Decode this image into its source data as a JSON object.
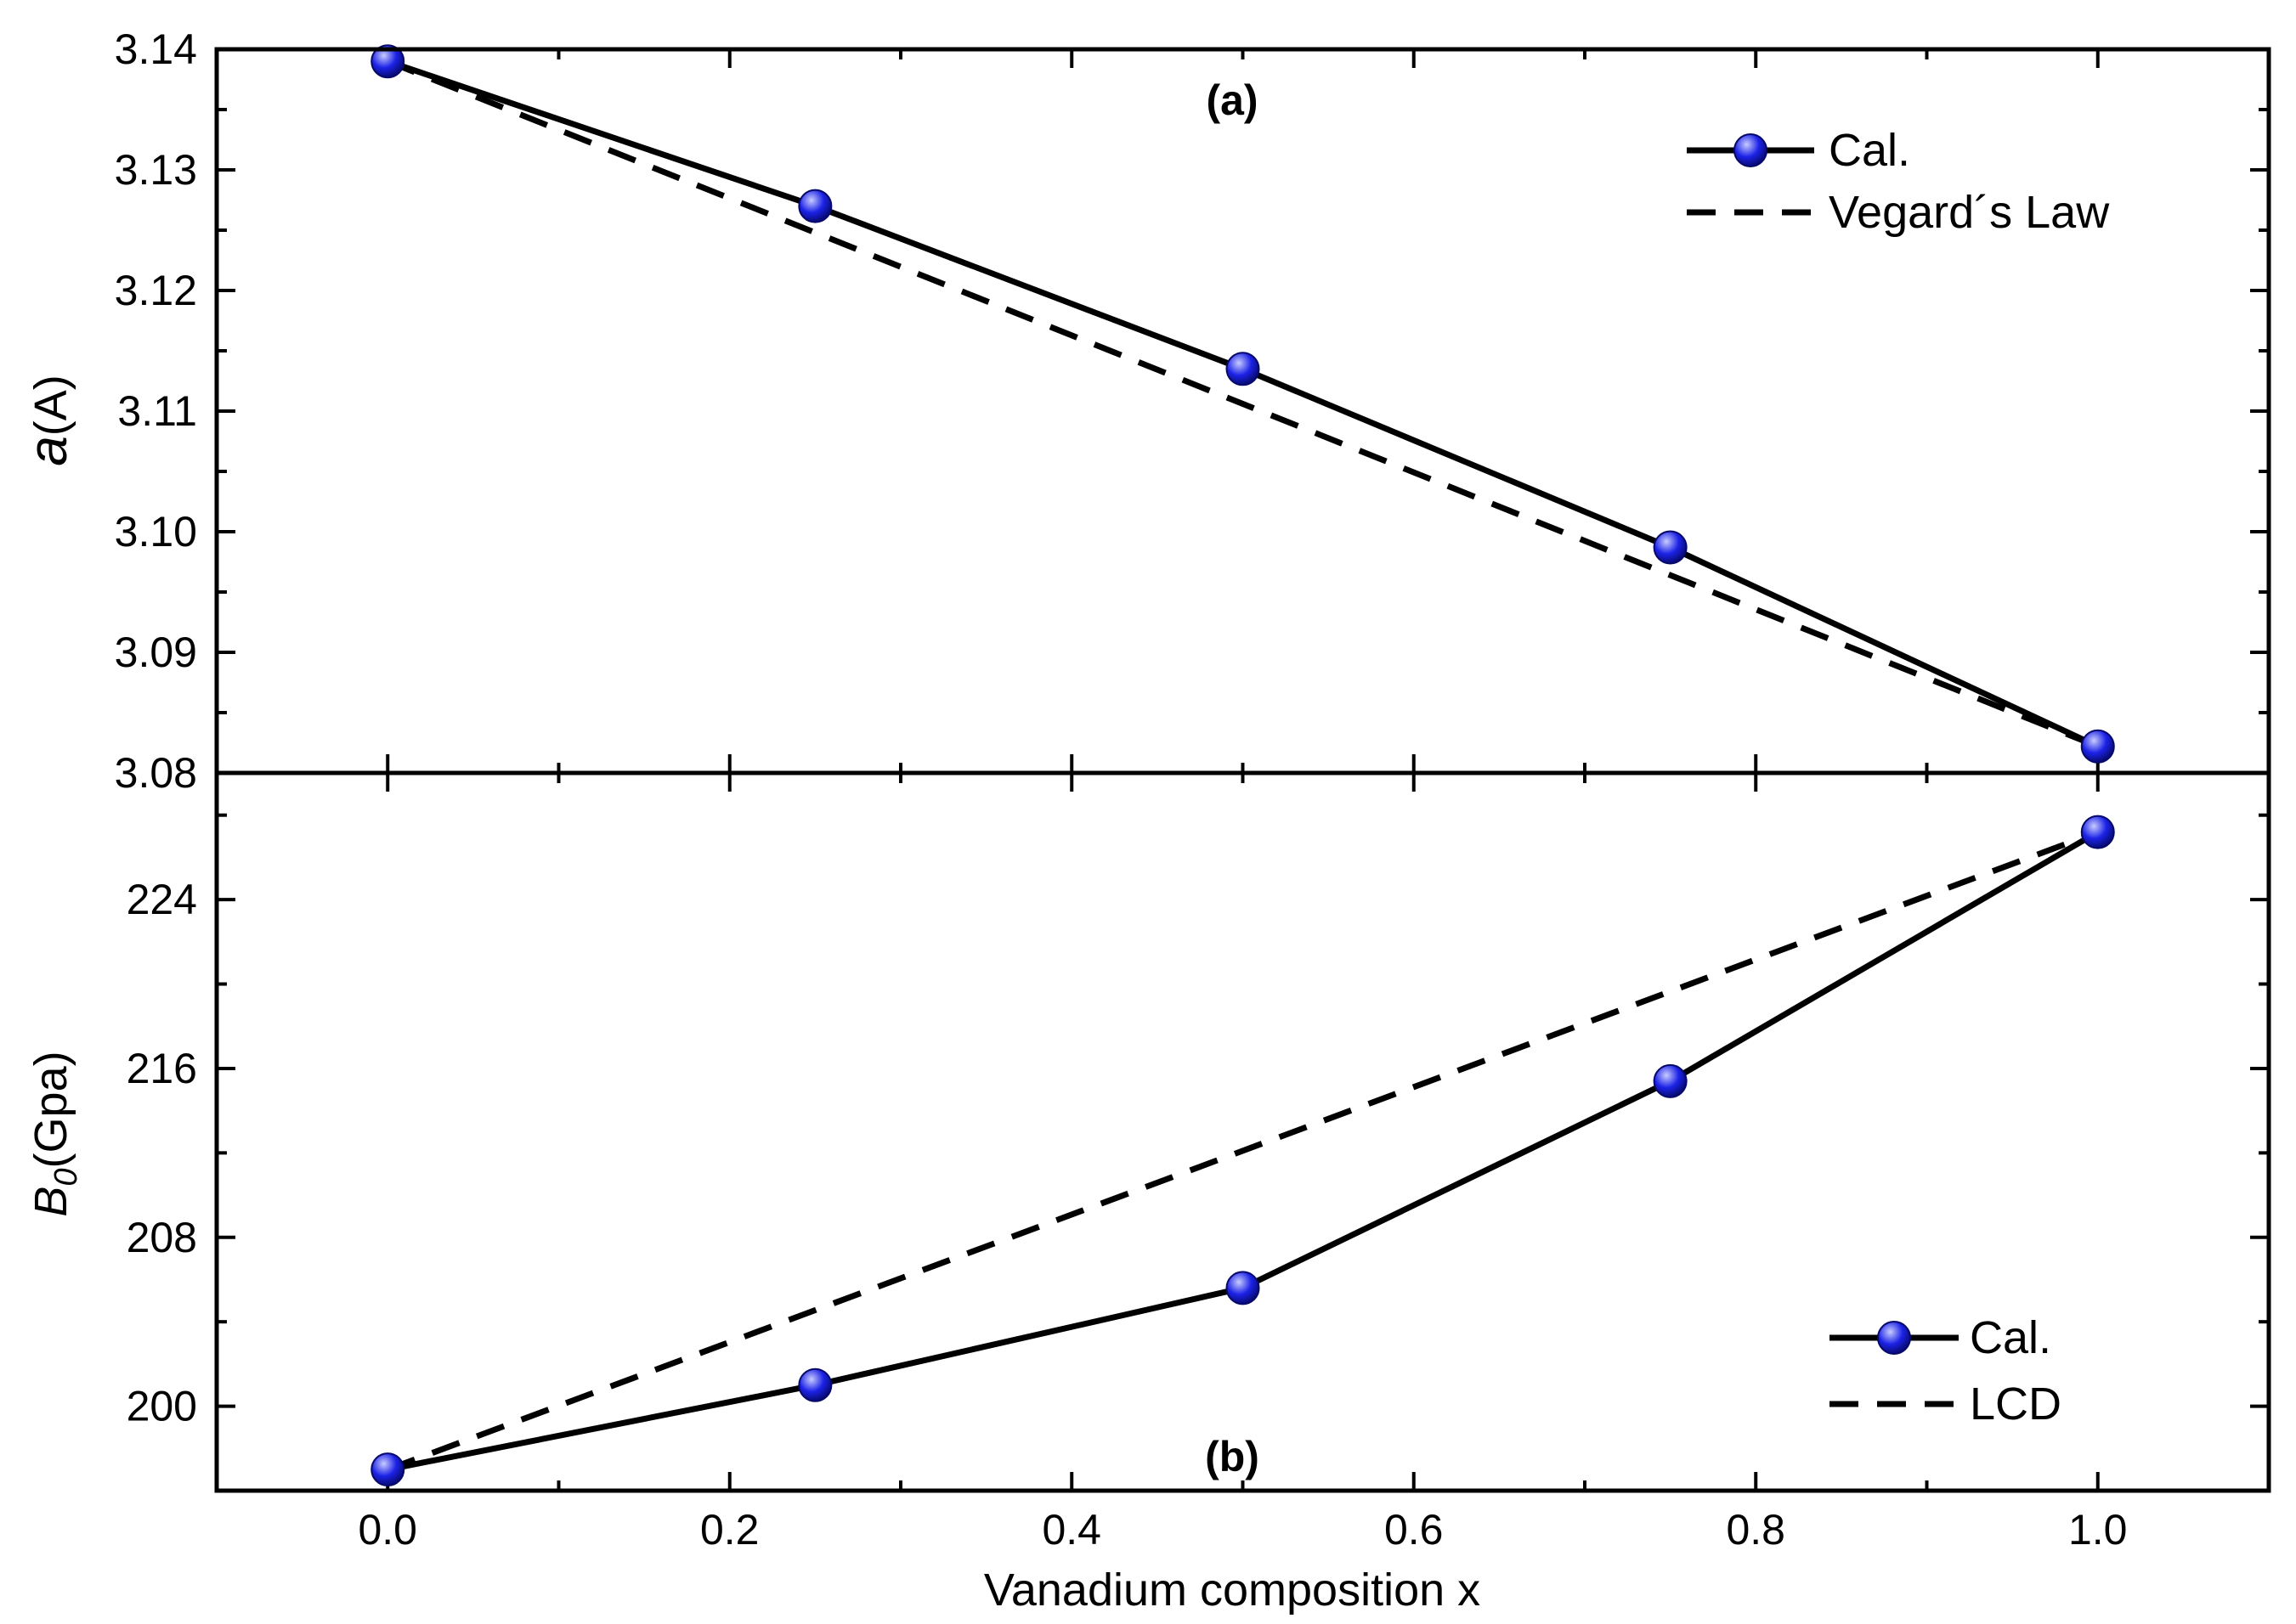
{
  "chart_data": [
    {
      "panel": "a",
      "type": "line",
      "panel_label": "(a)",
      "xlabel": "Vanadium composition x",
      "ylabel": {
        "symbol": "a",
        "unit": "(A)"
      },
      "xlim": [
        -0.1,
        1.1
      ],
      "ylim": [
        3.08,
        3.14
      ],
      "xticks": [
        0.0,
        0.2,
        0.4,
        0.6,
        0.8,
        1.0
      ],
      "xtick_labels": [
        "0.0",
        "0.2",
        "0.4",
        "0.6",
        "0.8",
        "1.0"
      ],
      "yticks": [
        3.08,
        3.09,
        3.1,
        3.11,
        3.12,
        3.13,
        3.14
      ],
      "ytick_labels": [
        "3.08",
        "3.09",
        "3.10",
        "3.11",
        "3.12",
        "3.13",
        "3.14"
      ],
      "legend_position": "top-right",
      "series": [
        {
          "name": "Cal.",
          "style": "solid-with-markers",
          "x": [
            0,
            0.25,
            0.5,
            0.75,
            1.0
          ],
          "values": [
            3.139,
            3.127,
            3.1135,
            3.0987,
            3.0822
          ]
        },
        {
          "name": "Vegard´s Law",
          "style": "dashed",
          "x": [
            0,
            1.0
          ],
          "values": [
            3.139,
            3.0822
          ]
        }
      ]
    },
    {
      "panel": "b",
      "type": "line",
      "panel_label": "(b)",
      "xlabel": "Vanadium composition x",
      "ylabel": {
        "symbol": "B",
        "subscript": "0",
        "unit": "(Gpa)"
      },
      "xlim": [
        -0.1,
        1.1
      ],
      "ylim": [
        196,
        230
      ],
      "yticks": [
        200,
        208,
        216,
        224
      ],
      "ytick_labels": [
        "200",
        "208",
        "216",
        "224"
      ],
      "legend_position": "bottom-right",
      "series": [
        {
          "name": "Cal.",
          "style": "solid-with-markers",
          "x": [
            0,
            0.25,
            0.5,
            0.75,
            1.0
          ],
          "values": [
            197.0,
            201.0,
            205.6,
            215.4,
            227.2
          ]
        },
        {
          "name": "LCD",
          "style": "dashed",
          "x": [
            0,
            1.0
          ],
          "values": [
            197.0,
            227.2
          ]
        }
      ]
    }
  ],
  "colors": {
    "line": "#000000",
    "marker_fill": "#1c22e6",
    "marker_highlight": "#c8ccff",
    "marker_edge": "#06096b"
  }
}
